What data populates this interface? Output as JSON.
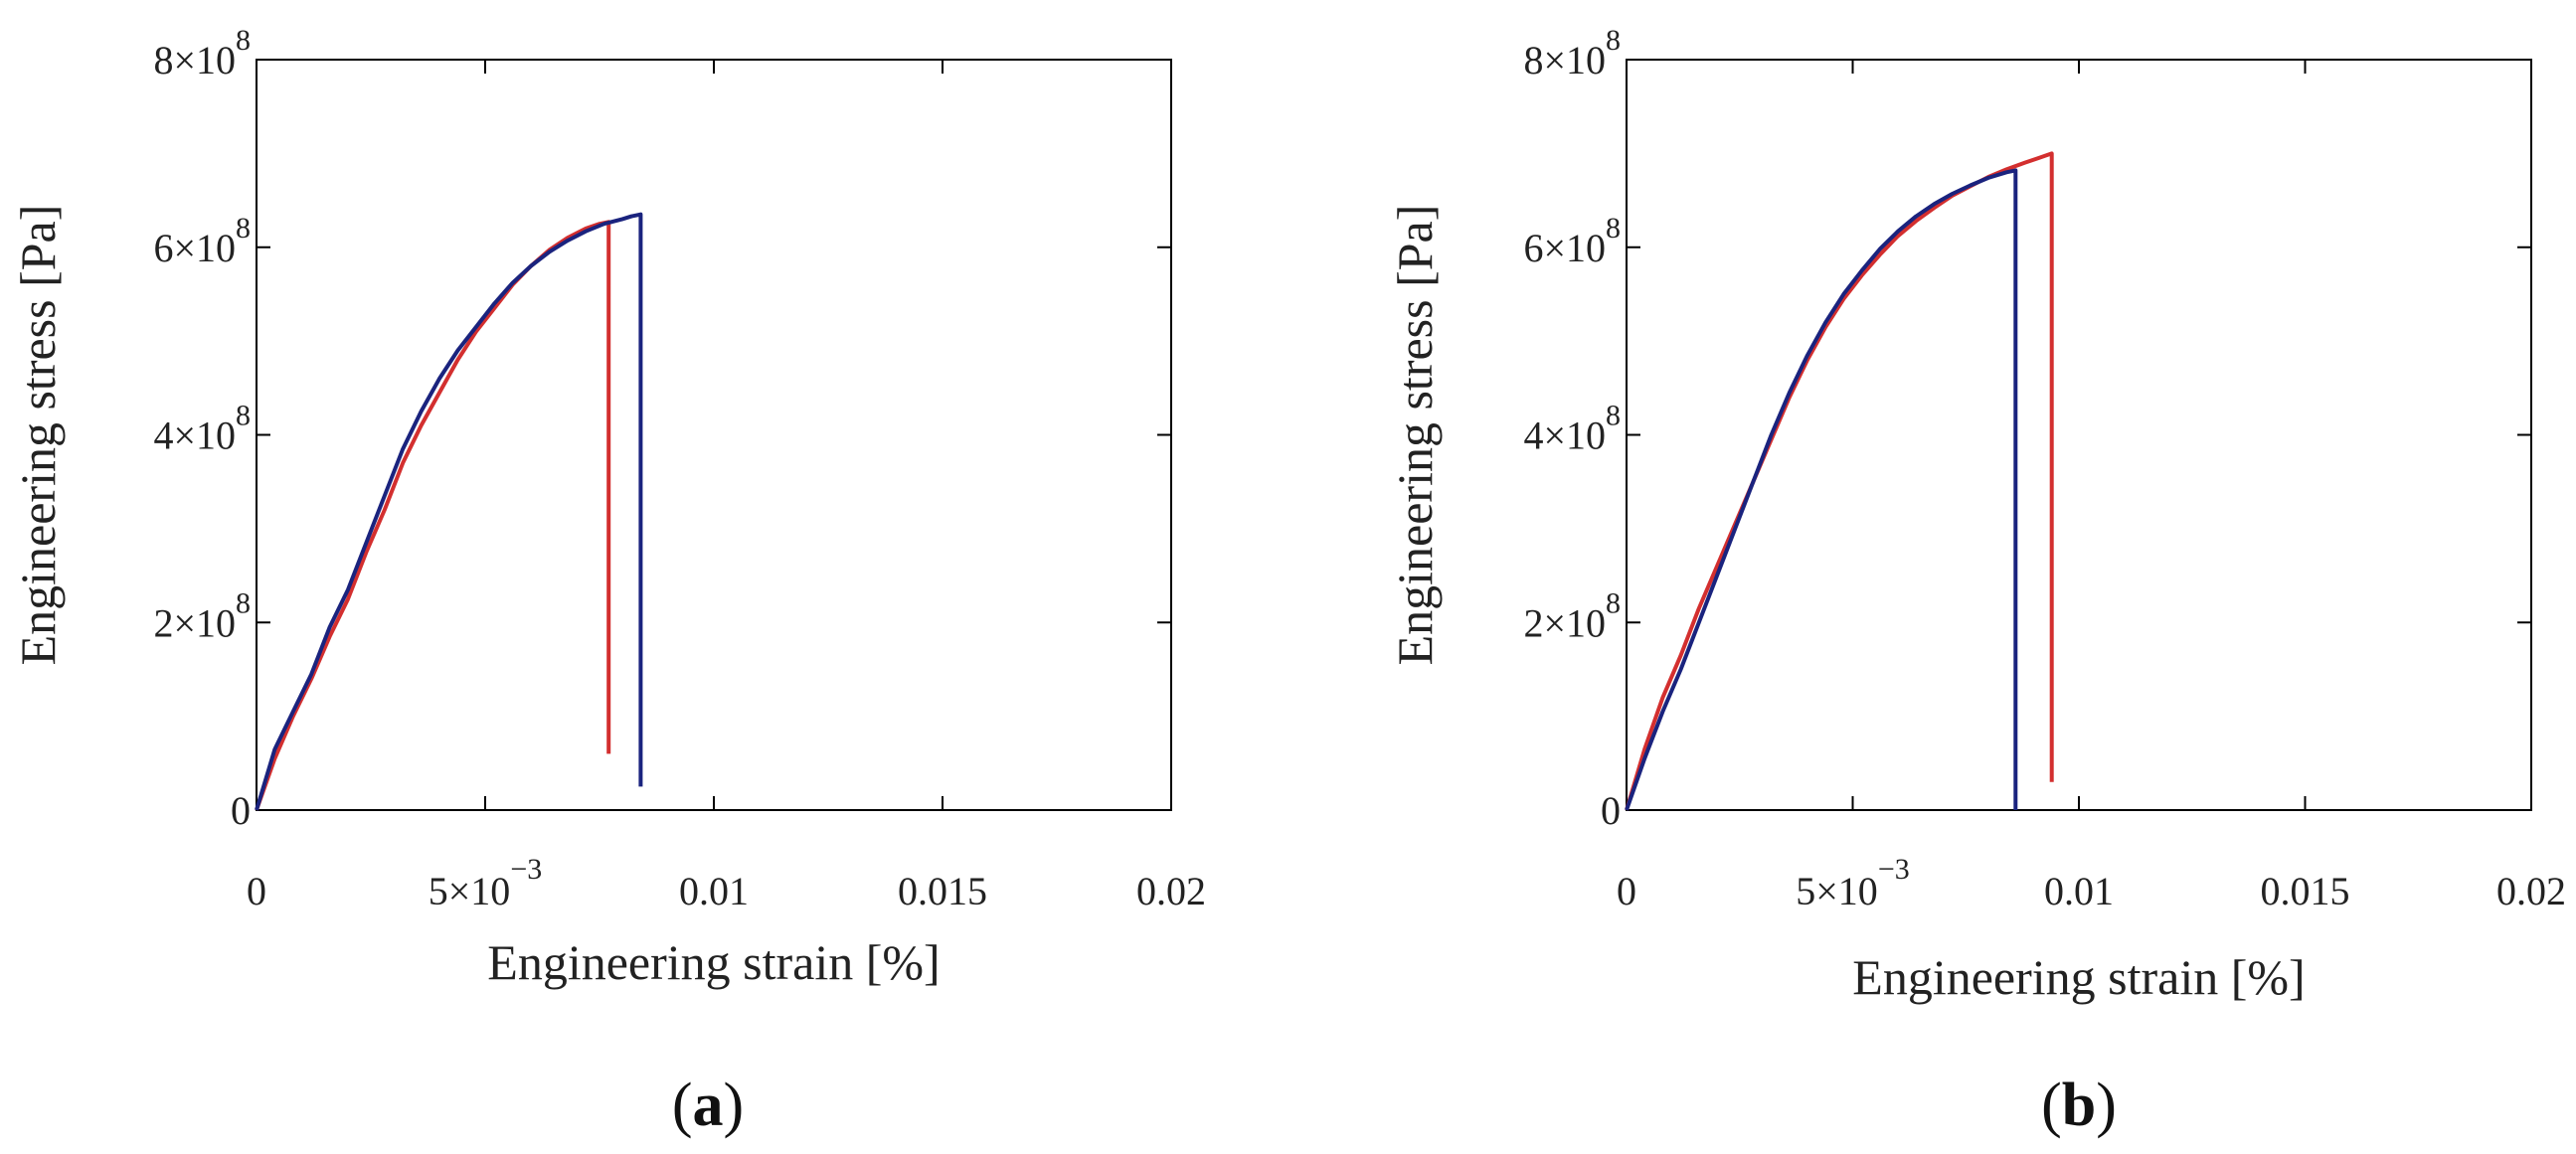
{
  "chart_data": [
    {
      "type": "line",
      "panel_label": "a",
      "xlabel": "Engineering strain [%]",
      "ylabel": "Engineering stress [Pa]",
      "xlim": [
        0,
        0.02
      ],
      "ylim": [
        0,
        800000000
      ],
      "x_ticks": [
        {
          "value": 0,
          "label": "0",
          "exp": ""
        },
        {
          "value": 0.005,
          "label": "5×10",
          "exp": "−3"
        },
        {
          "value": 0.01,
          "label": "0.01",
          "exp": ""
        },
        {
          "value": 0.015,
          "label": "0.015",
          "exp": ""
        },
        {
          "value": 0.02,
          "label": "0.02",
          "exp": ""
        }
      ],
      "y_ticks": [
        {
          "value": 0,
          "label": "0",
          "exp": ""
        },
        {
          "value": 200000000,
          "label": "2×10",
          "exp": "8"
        },
        {
          "value": 400000000,
          "label": "4×10",
          "exp": "8"
        },
        {
          "value": 600000000,
          "label": "6×10",
          "exp": "8"
        },
        {
          "value": 800000000,
          "label": "8×10",
          "exp": "8"
        }
      ],
      "grid": false,
      "series": [
        {
          "color": "#d32f2f",
          "x": [
            0,
            0.0004,
            0.0008,
            0.0012,
            0.0016,
            0.002,
            0.0024,
            0.0028,
            0.0032,
            0.0036,
            0.004,
            0.0044,
            0.0048,
            0.0052,
            0.0056,
            0.006,
            0.0064,
            0.0068,
            0.0072,
            0.0075,
            0.0077,
            0.0077
          ],
          "y": [
            0,
            55000000,
            100000000,
            140000000,
            185000000,
            225000000,
            275000000,
            320000000,
            370000000,
            410000000,
            445000000,
            480000000,
            510000000,
            535000000,
            560000000,
            580000000,
            597000000,
            610000000,
            620000000,
            625000000,
            627000000,
            60000000
          ]
        },
        {
          "color": "#1a237e",
          "x": [
            0,
            0.0004,
            0.0008,
            0.0012,
            0.0016,
            0.002,
            0.0024,
            0.0028,
            0.0032,
            0.0036,
            0.004,
            0.0044,
            0.0048,
            0.0052,
            0.0056,
            0.006,
            0.0064,
            0.0068,
            0.0072,
            0.0076,
            0.008,
            0.0082,
            0.0084,
            0.0084
          ],
          "y": [
            0,
            65000000,
            105000000,
            145000000,
            195000000,
            235000000,
            285000000,
            335000000,
            385000000,
            425000000,
            460000000,
            490000000,
            515000000,
            540000000,
            562000000,
            580000000,
            595000000,
            607000000,
            617000000,
            625000000,
            630000000,
            633000000,
            635000000,
            25000000
          ]
        }
      ]
    },
    {
      "type": "line",
      "panel_label": "b",
      "xlabel": "Engineering strain [%]",
      "ylabel": "Engineering stress [Pa]",
      "xlim": [
        0,
        0.02
      ],
      "ylim": [
        0,
        800000000
      ],
      "x_ticks": [
        {
          "value": 0,
          "label": "0",
          "exp": ""
        },
        {
          "value": 0.005,
          "label": "5×10",
          "exp": "−3"
        },
        {
          "value": 0.01,
          "label": "0.01",
          "exp": ""
        },
        {
          "value": 0.015,
          "label": "0.015",
          "exp": ""
        },
        {
          "value": 0.02,
          "label": "0.02",
          "exp": ""
        }
      ],
      "y_ticks": [
        {
          "value": 0,
          "label": "0",
          "exp": ""
        },
        {
          "value": 200000000,
          "label": "2×10",
          "exp": "8"
        },
        {
          "value": 400000000,
          "label": "4×10",
          "exp": "8"
        },
        {
          "value": 600000000,
          "label": "6×10",
          "exp": "8"
        },
        {
          "value": 800000000,
          "label": "8×10",
          "exp": "8"
        }
      ],
      "grid": false,
      "series": [
        {
          "color": "#d32f2f",
          "x": [
            0,
            0.0004,
            0.0008,
            0.0012,
            0.0016,
            0.002,
            0.0024,
            0.0028,
            0.0032,
            0.0036,
            0.004,
            0.0044,
            0.0048,
            0.0052,
            0.0056,
            0.006,
            0.0064,
            0.0068,
            0.0072,
            0.0076,
            0.008,
            0.0084,
            0.0088,
            0.0091,
            0.0094,
            0.0094
          ],
          "y": [
            0,
            65000000,
            120000000,
            165000000,
            215000000,
            260000000,
            305000000,
            350000000,
            395000000,
            440000000,
            480000000,
            515000000,
            545000000,
            570000000,
            592000000,
            612000000,
            628000000,
            642000000,
            655000000,
            665000000,
            675000000,
            683000000,
            690000000,
            695000000,
            700000000,
            30000000
          ]
        },
        {
          "color": "#1a237e",
          "x": [
            0,
            0.0004,
            0.0008,
            0.0012,
            0.0016,
            0.002,
            0.0024,
            0.0028,
            0.0032,
            0.0036,
            0.004,
            0.0044,
            0.0048,
            0.0052,
            0.0056,
            0.006,
            0.0064,
            0.0068,
            0.0072,
            0.0076,
            0.008,
            0.0084,
            0.0086,
            0.0086
          ],
          "y": [
            0,
            55000000,
            105000000,
            150000000,
            200000000,
            250000000,
            300000000,
            350000000,
            400000000,
            445000000,
            485000000,
            520000000,
            550000000,
            575000000,
            598000000,
            617000000,
            633000000,
            646000000,
            657000000,
            666000000,
            674000000,
            680000000,
            682000000,
            0
          ]
        }
      ]
    }
  ]
}
